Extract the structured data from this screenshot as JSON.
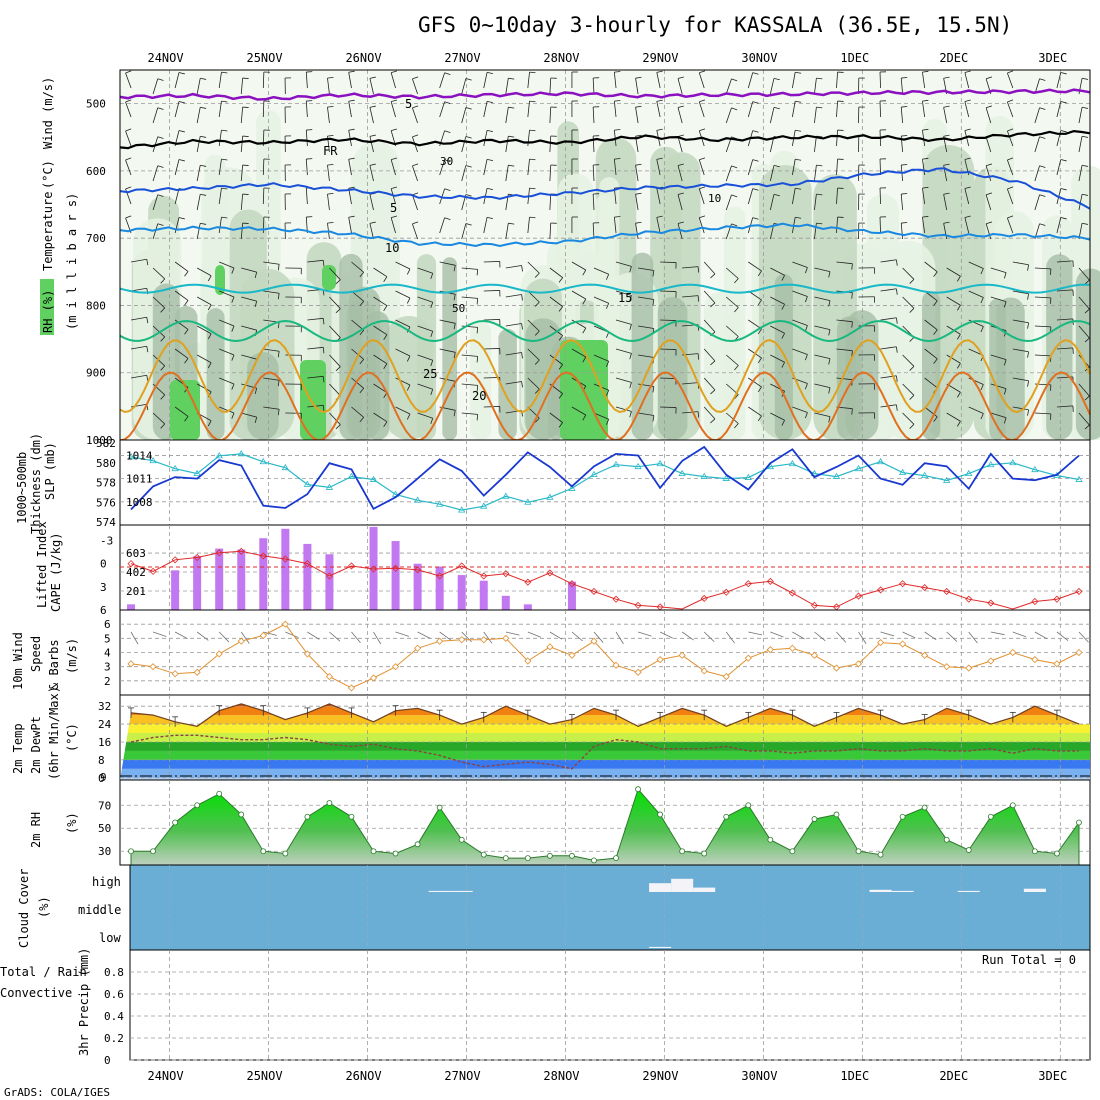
{
  "title": "GFS 0~10day 3-hourly for KASSALA (36.5E, 15.5N)",
  "footer": "GrADS: COLA/IGES",
  "dates": [
    "24NOV",
    "25NOV",
    "26NOV",
    "27NOV",
    "28NOV",
    "29NOV",
    "30NOV",
    "1DEC",
    "2DEC",
    "3DEC"
  ],
  "colors": {
    "frame": "#000000",
    "grid": "#9a9a9a",
    "rh_light": "#e6f2e2",
    "rh_mid": "#c4d8c0",
    "rh_dark": "#a6bea6",
    "rh_green": "#60d060",
    "thickness": "#28b8c8",
    "slp": "#1838d0",
    "cape": "#c278f0",
    "lifted": "#e02828",
    "wind10m": "#e09030",
    "barb": "#707070",
    "rh2m": "#20c020",
    "cloud": "#6aaed6",
    "cloud_patch": "#f4f4f8"
  },
  "panels": {
    "upper": {
      "label_rh": "RH (%)",
      "label_temp": "Temperature",
      "label_temp_unit": "(°C)",
      "label_wind": "Wind (m/s)",
      "label_pressure": "(m i l l i b a r s)",
      "pressure_ticks": [
        "500",
        "600",
        "700",
        "800",
        "900",
        "1000"
      ],
      "isotherms": [
        {
          "label": "5",
          "color": "#8a10c0"
        },
        {
          "label": "FR",
          "color": "#000000"
        },
        {
          "label": "5",
          "color": "#1850d8"
        },
        {
          "label": "10",
          "color": "#1888e0"
        },
        {
          "label": "15",
          "color": "#18b8c8"
        },
        {
          "label": "20",
          "color": "#18b880"
        },
        {
          "label": "25",
          "color": "#e0a020"
        }
      ],
      "rh_contour_labels": [
        "30",
        "50",
        "10"
      ]
    },
    "slp": {
      "label_thickness": "1000~500mb",
      "label_thickness2": "Thickness (dm)",
      "label_slp": "SLP (mb)",
      "thickness_ticks": [
        "582",
        "580",
        "578",
        "576",
        "574"
      ],
      "slp_ticks": [
        "1014",
        "1011",
        "1008"
      ]
    },
    "cape": {
      "label_li": "Lifted Index",
      "label_cape": "CAPE (J/kg)",
      "li_ticks": [
        "-3",
        "0",
        "3",
        "6"
      ],
      "cape_ticks": [
        "603",
        "402",
        "201"
      ]
    },
    "wind": {
      "label1": "10m Wind",
      "label2": "Speed",
      "label3": "& Barbs",
      "unit": "(m/s)",
      "ticks": [
        "6",
        "5",
        "4",
        "3",
        "2"
      ]
    },
    "temp": {
      "label1": "2m Temp",
      "label2": "2m DewPt",
      "label3": "(6hr Min/Max)",
      "unit": "(°C)",
      "ticks": [
        "32",
        "24",
        "16",
        "8",
        "0"
      ],
      "extra_tick": "9"
    },
    "rh2m": {
      "label": "2m RH",
      "unit": "(%)",
      "ticks": [
        "70",
        "50",
        "30"
      ]
    },
    "cloud": {
      "label": "Cloud Cover",
      "unit": "(%)",
      "levels": [
        "high",
        "middle",
        "low"
      ]
    },
    "precip": {
      "label_total": "Total / Rain",
      "label_conv": "Convective",
      "label_unit": "3hr Precip (mm)",
      "ticks": [
        "0.8",
        "0.6",
        "0.4",
        "0.2",
        "0"
      ],
      "run_total": "Run Total = 0"
    }
  },
  "chart_data": {
    "type": "meteogram",
    "location": "KASSALA (36.5E, 15.5N)",
    "model": "GFS",
    "x_dates": [
      "24NOV",
      "25NOV",
      "26NOV",
      "27NOV",
      "28NOV",
      "29NOV",
      "30NOV",
      "1DEC",
      "2DEC",
      "3DEC"
    ],
    "x_start_offset_days": -0.5,
    "x_end_offset_days": 9.3,
    "upper_pressure_range": [
      450,
      1000
    ],
    "isotherm_levels_mb": {
      "upper_5": [
        490,
        488,
        493,
        487,
        490,
        487,
        485,
        489,
        487,
        486,
        484,
        483,
        482,
        481
      ],
      "freezing": [
        565,
        556,
        558,
        553,
        560,
        555,
        558,
        549,
        554,
        550,
        549,
        554,
        546,
        542
      ],
      "minus5_600": [
        630,
        626,
        620,
        628,
        638,
        640,
        633,
        625,
        622,
        620,
        605,
        597,
        615,
        654
      ],
      "plus10": [
        688,
        685,
        686,
        693,
        708,
        710,
        705,
        692,
        685,
        680,
        690,
        697,
        695,
        700
      ]
    },
    "thickness_dm": [
      580.6,
      580.2,
      579.4,
      578.9,
      580.7,
      580.9,
      580.1,
      579.5,
      577.8,
      577.5,
      578.6,
      578.3,
      576.8,
      576.2,
      575.8,
      575.2,
      575.6,
      576.6,
      576.0,
      576.5,
      577.4,
      578.8,
      579.8,
      579.6,
      579.9,
      578.9,
      578.6,
      578.4,
      578.5,
      579.6,
      579.9,
      578.9,
      578.6,
      579.4,
      580.1,
      579.0,
      578.7,
      578.2,
      578.9,
      579.8,
      580.0,
      579.3,
      578.7,
      578.3
    ],
    "slp_mb": [
      1007.0,
      1010.0,
      1011.2,
      1011.0,
      1013.4,
      1012.7,
      1007.5,
      1007.2,
      1009.0,
      1013.0,
      1012.2,
      1007.1,
      1008.6,
      1011.0,
      1013.5,
      1012.0,
      1008.8,
      1011.5,
      1014.4,
      1012.5,
      1010.0,
      1012.6,
      1014.2,
      1014.0,
      1009.8,
      1013.3,
      1015.1,
      1011.5,
      1009.6,
      1013.0,
      1014.8,
      1011.2,
      1012.5,
      1014.0,
      1011.0,
      1010.2,
      1013.0,
      1012.6,
      1009.7,
      1014.2,
      1011.0,
      1010.8,
      1011.5,
      1014.0
    ],
    "cape_jkg": [
      60,
      0,
      420,
      570,
      650,
      640,
      760,
      860,
      700,
      590,
      0,
      880,
      730,
      490,
      460,
      370,
      310,
      150,
      60,
      0,
      300,
      0,
      0,
      0,
      0,
      0,
      0,
      0,
      0,
      0,
      0,
      0,
      0,
      0,
      0,
      0,
      0,
      0,
      0,
      0,
      0,
      0,
      0,
      0
    ],
    "lifted_index": [
      0.0,
      1.0,
      -0.5,
      -0.8,
      -1.4,
      -1.6,
      -1.0,
      -0.6,
      0.0,
      1.6,
      0.3,
      0.7,
      0.6,
      0.8,
      1.6,
      0.3,
      1.6,
      1.3,
      2.4,
      1.2,
      2.6,
      3.6,
      4.6,
      5.4,
      5.6,
      6.0,
      4.5,
      3.7,
      2.6,
      2.3,
      3.8,
      5.4,
      5.6,
      4.2,
      3.4,
      2.6,
      3.1,
      3.6,
      4.6,
      5.1,
      6.0,
      4.9,
      4.6,
      3.6
    ],
    "wind10m_speed": [
      3.2,
      3.0,
      2.5,
      2.6,
      3.9,
      4.8,
      5.2,
      6.0,
      3.9,
      2.3,
      1.5,
      2.2,
      3.0,
      4.3,
      4.8,
      4.9,
      4.9,
      5.0,
      3.4,
      4.4,
      3.8,
      4.8,
      3.1,
      2.6,
      3.5,
      3.8,
      2.7,
      2.3,
      3.6,
      4.2,
      4.3,
      3.8,
      2.9,
      3.2,
      4.7,
      4.6,
      3.8,
      3.0,
      2.9,
      3.4,
      4.0,
      3.5,
      3.2,
      4.0
    ],
    "temp2m_c": [
      29,
      28,
      25,
      23,
      30,
      33,
      30,
      26,
      29,
      33,
      29,
      25,
      30,
      31,
      28,
      24,
      27,
      32,
      28,
      24,
      26,
      31,
      28,
      23,
      27,
      31,
      28,
      23,
      27,
      31,
      28,
      23,
      27,
      31,
      28,
      24,
      26,
      31,
      28,
      24,
      27,
      32,
      28,
      24
    ],
    "dewpt2m_c": [
      16,
      18,
      19,
      19,
      18,
      17,
      17,
      18,
      17,
      15,
      14,
      15,
      13,
      12,
      10,
      7,
      5,
      6,
      7,
      6,
      4,
      14,
      17,
      16,
      13,
      13,
      13,
      14,
      12,
      12,
      11,
      12,
      12,
      13,
      12,
      12,
      13,
      12,
      12,
      13,
      11,
      13,
      12,
      12
    ],
    "rh2m_pct": [
      30,
      30,
      55,
      70,
      80,
      62,
      30,
      28,
      60,
      72,
      60,
      30,
      28,
      36,
      68,
      40,
      27,
      24,
      24,
      26,
      26,
      22,
      24,
      84,
      62,
      30,
      28,
      60,
      70,
      40,
      30,
      58,
      62,
      30,
      27,
      60,
      68,
      40,
      31,
      60,
      70,
      30,
      28,
      55
    ],
    "cloud_cover_pct": {
      "high": [
        0,
        0,
        0,
        0,
        0,
        0,
        0,
        0,
        0,
        0,
        0,
        0,
        0,
        0,
        5,
        5,
        0,
        0,
        0,
        0,
        0,
        0,
        0,
        0,
        40,
        60,
        20,
        0,
        0,
        0,
        0,
        0,
        0,
        0,
        10,
        5,
        0,
        0,
        5,
        0,
        0,
        15,
        0,
        0
      ],
      "middle": [
        0,
        0,
        0,
        0,
        0,
        0,
        0,
        0,
        0,
        0,
        0,
        0,
        0,
        0,
        0,
        0,
        0,
        0,
        0,
        0,
        0,
        0,
        0,
        0,
        0,
        0,
        0,
        0,
        0,
        0,
        0,
        0,
        0,
        0,
        0,
        0,
        0,
        0,
        0,
        0,
        0,
        0,
        0,
        0
      ],
      "low": [
        0,
        0,
        0,
        0,
        0,
        0,
        0,
        0,
        0,
        0,
        0,
        0,
        0,
        0,
        0,
        0,
        0,
        0,
        0,
        0,
        0,
        0,
        0,
        0,
        5,
        0,
        0,
        0,
        0,
        0,
        0,
        0,
        0,
        0,
        0,
        0,
        0,
        0,
        0,
        0,
        0,
        0,
        0,
        0
      ]
    },
    "precip3h_mm": [
      0,
      0,
      0,
      0,
      0,
      0,
      0,
      0,
      0,
      0,
      0,
      0,
      0,
      0,
      0,
      0,
      0,
      0,
      0,
      0,
      0,
      0,
      0,
      0,
      0,
      0,
      0,
      0,
      0,
      0,
      0,
      0,
      0,
      0,
      0,
      0,
      0,
      0,
      0,
      0,
      0,
      0,
      0,
      0
    ],
    "axes": {
      "thickness_range": [
        574,
        582
      ],
      "slp_range": [
        1005,
        1016
      ],
      "cape_range": [
        0,
        900
      ],
      "lifted_index_range": [
        6,
        -5
      ],
      "wind_range": [
        1,
        7
      ],
      "temp_range": [
        -1,
        37
      ],
      "rh2m_range": [
        18,
        92
      ],
      "precip_range": [
        0,
        1
      ]
    }
  }
}
